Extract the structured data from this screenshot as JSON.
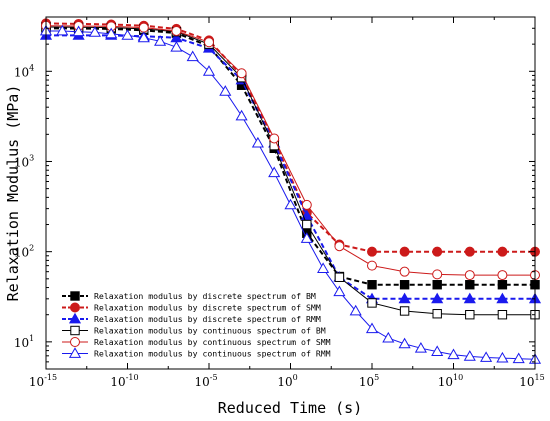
{
  "chart_data": {
    "type": "line",
    "title": "",
    "xlabel": "Reduced Time (s)",
    "ylabel": "Relaxation Modulus (MPa)",
    "x_scale": "log",
    "y_scale": "log",
    "xlim": [
      1e-15,
      1000000000000000.0
    ],
    "ylim": [
      5,
      40000
    ],
    "x_ticks": [
      {
        "base": "10",
        "exp": "-15",
        "value": 1e-15
      },
      {
        "base": "10",
        "exp": "-10",
        "value": 1e-10
      },
      {
        "base": "10",
        "exp": "-5",
        "value": 1e-05
      },
      {
        "base": "10",
        "exp": "0",
        "value": 1
      },
      {
        "base": "10",
        "exp": "5",
        "value": 100000.0
      },
      {
        "base": "10",
        "exp": "10",
        "value": 10000000000.0
      },
      {
        "base": "10",
        "exp": "15",
        "value": 1000000000000000.0
      }
    ],
    "y_ticks": [
      {
        "base": "10",
        "exp": "1",
        "value": 10
      },
      {
        "base": "10",
        "exp": "2",
        "value": 100
      },
      {
        "base": "10",
        "exp": "3",
        "value": 1000
      },
      {
        "base": "10",
        "exp": "4",
        "value": 10000
      }
    ],
    "grid": false,
    "legend_position": "bottom-left",
    "series": [
      {
        "name": "Relaxation modulus by discrete spectrum of BM",
        "color": "#000000",
        "marker": "square-filled",
        "line": "dashed",
        "x": [
          1e-15,
          1e-13,
          1e-11,
          1e-09,
          1e-07,
          1e-05,
          0.001,
          0.1,
          10,
          1000,
          100000.0,
          10000000.0,
          1000000000.0,
          100000000000.0,
          10000000000000.0,
          1000000000000000.0
        ],
        "y": [
          30000,
          29800,
          29500,
          28500,
          26500,
          19000,
          7000,
          1400,
          160,
          53,
          43,
          43,
          43,
          43,
          43,
          43
        ]
      },
      {
        "name": "Relaxation modulus by discrete spectrum of SMM",
        "color": "#cc1a1a",
        "marker": "circle-filled",
        "line": "dashed",
        "x": [
          1e-15,
          1e-13,
          1e-11,
          1e-09,
          1e-07,
          1e-05,
          0.001,
          0.1,
          10,
          1000,
          100000.0,
          10000000.0,
          1000000000.0,
          100000000000.0,
          10000000000000.0,
          1000000000000000.0
        ],
        "y": [
          34000,
          33500,
          33000,
          32000,
          29500,
          22000,
          9000,
          1700,
          270,
          120,
          100,
          100,
          100,
          100,
          100,
          100
        ]
      },
      {
        "name": "Relaxation modulus by discrete spectrum of RMM",
        "color": "#1a1aee",
        "marker": "triangle-filled",
        "line": "dashed",
        "x": [
          1e-15,
          1e-13,
          1e-11,
          1e-09,
          1e-07,
          1e-05,
          0.001,
          0.1,
          10,
          1000,
          100000.0,
          10000000.0,
          1000000000.0,
          100000000000.0,
          10000000000000.0,
          1000000000000000.0
        ],
        "y": [
          25000,
          25000,
          25000,
          24500,
          23500,
          18000,
          8000,
          1600,
          250,
          52,
          30,
          30,
          30,
          30,
          30,
          30
        ]
      },
      {
        "name": "Relaxation modulus by continuous spectrum of BM",
        "color": "#000000",
        "marker": "square-open",
        "line": "solid",
        "x": [
          1e-15,
          1e-13,
          1e-11,
          1e-09,
          1e-07,
          1e-05,
          0.001,
          0.1,
          10,
          1000,
          100000.0,
          10000000.0,
          1000000000.0,
          100000000000.0,
          10000000000000.0,
          1000000000000000.0
        ],
        "y": [
          31000,
          30800,
          30500,
          29500,
          27500,
          20000,
          8500,
          1500,
          200,
          52,
          27,
          22,
          20.5,
          20,
          20,
          20
        ]
      },
      {
        "name": "Relaxation modulus by continuous spectrum of SMM",
        "color": "#cc1a1a",
        "marker": "circle-open",
        "line": "solid",
        "x": [
          1e-15,
          1e-13,
          1e-11,
          1e-09,
          1e-07,
          1e-05,
          0.001,
          0.1,
          10,
          1000,
          100000.0,
          10000000.0,
          1000000000.0,
          100000000000.0,
          10000000000000.0,
          1000000000000000.0
        ],
        "y": [
          32000,
          31800,
          31500,
          30500,
          28000,
          21000,
          9500,
          1800,
          330,
          115,
          70,
          60,
          56,
          55,
          55,
          55
        ]
      },
      {
        "name": "Relaxation modulus by continuous spectrum of RMM",
        "color": "#1a1aee",
        "marker": "triangle-open",
        "line": "solid",
        "x": [
          1e-15,
          1e-14,
          1e-13,
          1e-12,
          1e-11,
          1e-10,
          1e-09,
          1e-08,
          1e-07,
          1e-06,
          1e-05,
          0.0001,
          0.001,
          0.01,
          0.1,
          1,
          10,
          100,
          1000,
          10000.0,
          100000.0,
          1000000.0,
          10000000.0,
          100000000.0,
          1000000000.0,
          10000000000.0,
          100000000000.0,
          1000000000000.0,
          10000000000000.0,
          100000000000000.0,
          1000000000000000.0
        ],
        "y": [
          28000,
          28000,
          27500,
          27000,
          26000,
          25000,
          23500,
          21500,
          18500,
          14500,
          10000,
          6000,
          3200,
          1600,
          750,
          330,
          140,
          65,
          36,
          22,
          14,
          11,
          9.5,
          8.5,
          7.8,
          7.2,
          6.9,
          6.7,
          6.6,
          6.5,
          6.4
        ]
      }
    ]
  }
}
